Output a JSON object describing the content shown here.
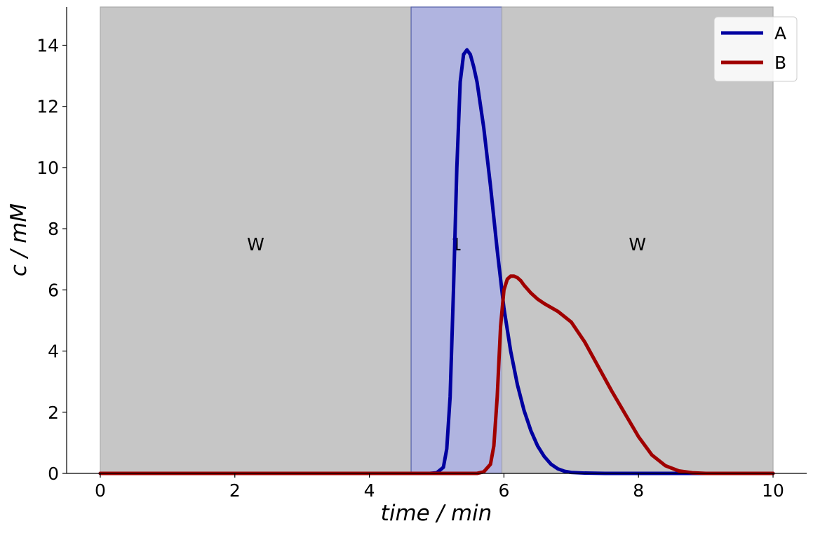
{
  "chart_data": {
    "type": "line",
    "xlabel": "time / min",
    "ylabel": "c / mM",
    "xlim": [
      -0.5,
      10.5
    ],
    "ylim": [
      0,
      15.25
    ],
    "xticks": [
      0,
      2,
      4,
      6,
      8,
      10
    ],
    "yticks": [
      0,
      2,
      4,
      6,
      8,
      10,
      12,
      14
    ],
    "xtick_labels": [
      "0",
      "2",
      "4",
      "6",
      "8",
      "10"
    ],
    "ytick_labels": [
      "0",
      "2",
      "4",
      "6",
      "8",
      "10",
      "12",
      "14"
    ],
    "grid": false,
    "legend_position": "top-right",
    "regions": [
      {
        "label": "W",
        "x_start": 0.0,
        "x_end": 4.62,
        "color": "#c6c6c6"
      },
      {
        "label": "1",
        "x_start": 4.62,
        "x_end": 5.97,
        "color": "#b0b4e0"
      },
      {
        "label": "W",
        "x_start": 5.97,
        "x_end": 10.0,
        "color": "#c6c6c6"
      }
    ],
    "series": [
      {
        "name": "A",
        "color": "#0000a0",
        "x": [
          0,
          4.9,
          5.0,
          5.1,
          5.15,
          5.2,
          5.25,
          5.3,
          5.35,
          5.4,
          5.45,
          5.5,
          5.55,
          5.6,
          5.7,
          5.8,
          5.9,
          6.0,
          6.1,
          6.2,
          6.3,
          6.4,
          6.5,
          6.6,
          6.7,
          6.8,
          6.9,
          7.0,
          7.2,
          7.5,
          8.0,
          10.0
        ],
        "y": [
          0,
          0,
          0.02,
          0.2,
          0.8,
          2.5,
          6.0,
          10.0,
          12.8,
          13.7,
          13.85,
          13.7,
          13.3,
          12.8,
          11.3,
          9.4,
          7.3,
          5.4,
          4.0,
          2.9,
          2.05,
          1.4,
          0.9,
          0.55,
          0.3,
          0.15,
          0.07,
          0.03,
          0.01,
          0,
          0,
          0
        ]
      },
      {
        "name": "B",
        "color": "#a00000",
        "x": [
          0,
          5.6,
          5.7,
          5.8,
          5.85,
          5.9,
          5.95,
          6.0,
          6.05,
          6.1,
          6.15,
          6.2,
          6.25,
          6.3,
          6.4,
          6.5,
          6.6,
          6.8,
          7.0,
          7.2,
          7.4,
          7.6,
          7.8,
          8.0,
          8.2,
          8.4,
          8.6,
          8.8,
          9.0,
          10.0
        ],
        "y": [
          0,
          0,
          0.05,
          0.3,
          0.9,
          2.5,
          4.8,
          6.0,
          6.35,
          6.45,
          6.45,
          6.4,
          6.3,
          6.15,
          5.9,
          5.7,
          5.55,
          5.3,
          4.95,
          4.3,
          3.5,
          2.7,
          1.95,
          1.2,
          0.6,
          0.25,
          0.08,
          0.02,
          0,
          0
        ]
      }
    ]
  }
}
